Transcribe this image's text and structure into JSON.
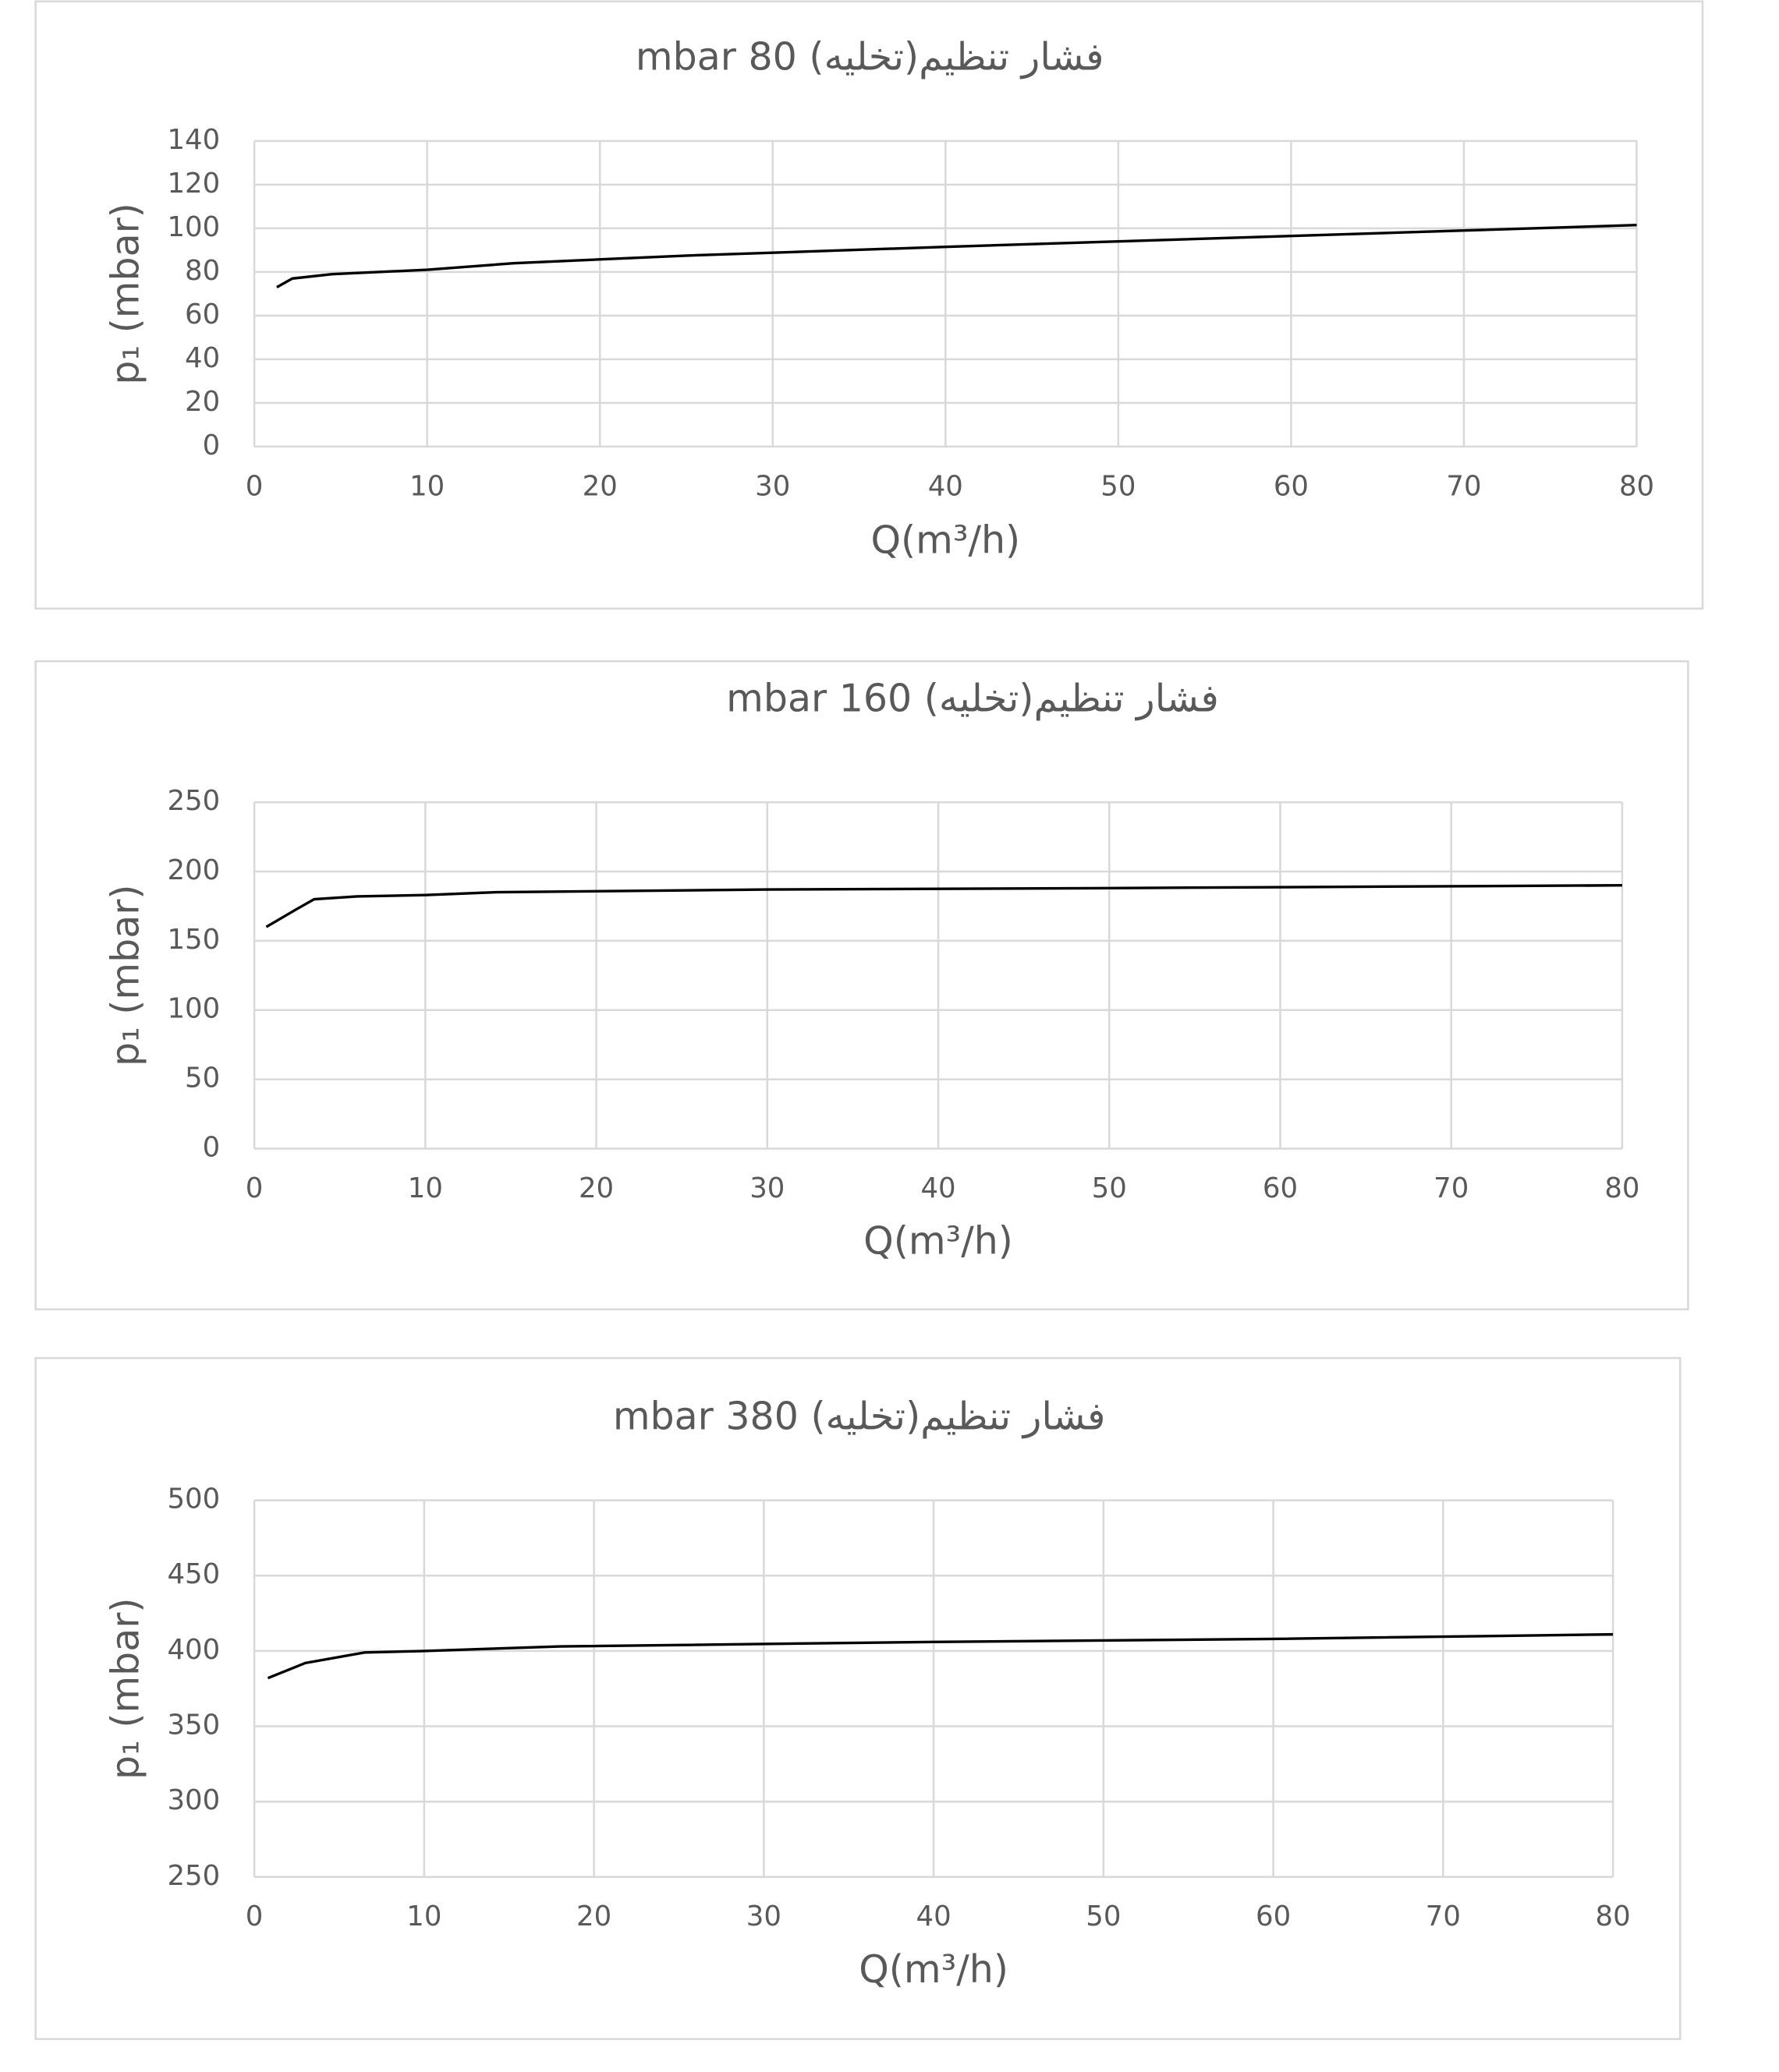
{
  "chart_data": [
    {
      "type": "line",
      "title": "فشار تنظیم(تخلیه) 80 mbar",
      "x_label": "Q(m³/h)",
      "y_label": "p₁ (mbar)",
      "x": [
        1.3,
        2.2,
        4.5,
        10,
        15,
        25,
        40,
        50,
        60,
        70,
        80
      ],
      "series": [
        {
          "color": "#000000",
          "values": [
            73,
            77,
            79,
            81,
            84,
            87.5,
            91.5,
            94,
            96.5,
            99,
            101.5
          ]
        }
      ],
      "xlim": [
        0,
        80
      ],
      "xticks": [
        0,
        10,
        20,
        30,
        40,
        50,
        60,
        70,
        80
      ],
      "ylim": [
        0,
        140
      ],
      "yticks": [
        0,
        20,
        40,
        60,
        80,
        100,
        120,
        140
      ],
      "grid": true
    },
    {
      "type": "line",
      "title": "فشار تنظیم(تخلیه) 160 mbar",
      "x_label": "Q(m³/h)",
      "y_label": "p₁ (mbar)",
      "x": [
        0.7,
        2.5,
        3.5,
        6,
        10,
        14,
        30,
        50,
        80
      ],
      "series": [
        {
          "color": "#000000",
          "values": [
            160,
            173,
            180,
            182,
            183,
            185,
            187,
            188,
            190
          ]
        }
      ],
      "xlim": [
        0,
        80
      ],
      "xticks": [
        0,
        10,
        20,
        30,
        40,
        50,
        60,
        70,
        80
      ],
      "ylim": [
        0,
        250
      ],
      "yticks": [
        0,
        50,
        100,
        150,
        200,
        250
      ],
      "grid": true
    },
    {
      "type": "line",
      "title": "فشار تنظیم(تخلیه) 380 mbar",
      "x_label": "Q(m³/h)",
      "y_label": "p₁ (mbar)",
      "x": [
        0.8,
        3,
        6.5,
        10,
        18,
        40,
        60,
        80
      ],
      "series": [
        {
          "color": "#000000",
          "values": [
            382,
            392,
            399,
            400,
            403,
            406,
            408,
            411
          ]
        }
      ],
      "xlim": [
        0,
        80
      ],
      "xticks": [
        0,
        10,
        20,
        30,
        40,
        50,
        60,
        70,
        80
      ],
      "ylim": [
        250,
        500
      ],
      "yticks": [
        250,
        300,
        350,
        400,
        450,
        500
      ],
      "grid": true
    }
  ]
}
